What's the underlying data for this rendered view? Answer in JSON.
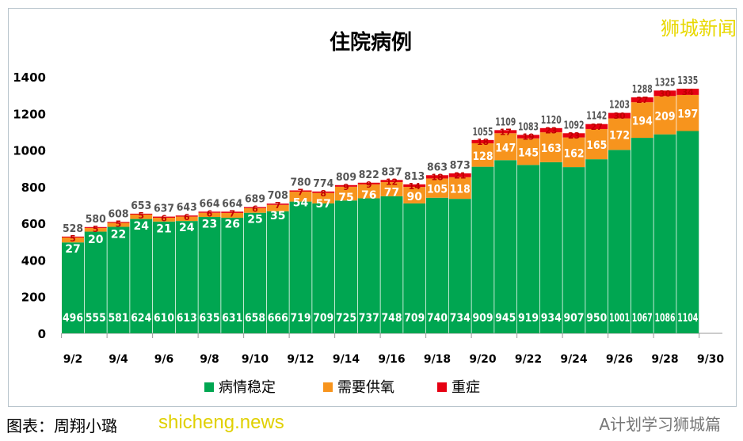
{
  "brand_watermark": "狮城新闻",
  "caption": "图表：周翔小璐",
  "site_watermark": "shicheng.news",
  "account_watermark": "A计划学习狮城篇",
  "colors": {
    "stable": "#00a651",
    "oxygen": "#f7941d",
    "icu": "#e60012"
  },
  "chart_data": {
    "type": "bar",
    "stacked": true,
    "title": "住院病例",
    "categories": [
      "9/2",
      "9/3",
      "9/4",
      "9/5",
      "9/6",
      "9/7",
      "9/8",
      "9/9",
      "9/10",
      "9/11",
      "9/12",
      "9/13",
      "9/14",
      "9/15",
      "9/16",
      "9/17",
      "9/18",
      "9/19",
      "9/20",
      "9/21",
      "9/22",
      "9/23",
      "9/24",
      "9/25",
      "9/26",
      "9/27",
      "9/28",
      "9/29"
    ],
    "x_tick_labels": [
      "9/2",
      "9/4",
      "9/6",
      "9/8",
      "9/10",
      "9/12",
      "9/14",
      "9/16",
      "9/18",
      "9/20",
      "9/22",
      "9/24",
      "9/26",
      "9/28",
      "9/30"
    ],
    "y_ticks": [
      0,
      200,
      400,
      600,
      800,
      1000,
      1200,
      1400
    ],
    "ylim": [
      0,
      1400
    ],
    "grid": false,
    "legend_position": "bottom",
    "series": [
      {
        "name": "病情稳定",
        "values": [
          496,
          555,
          581,
          624,
          610,
          613,
          635,
          631,
          658,
          666,
          719,
          709,
          725,
          737,
          748,
          709,
          740,
          734,
          909,
          945,
          919,
          934,
          907,
          950,
          1001,
          1067,
          1086,
          1104
        ]
      },
      {
        "name": "需要供氧",
        "values": [
          27,
          20,
          22,
          24,
          21,
          24,
          23,
          26,
          25,
          35,
          54,
          57,
          75,
          76,
          77,
          90,
          105,
          118,
          128,
          147,
          145,
          163,
          162,
          165,
          172,
          194,
          209,
          197
        ]
      },
      {
        "name": "重症",
        "values": [
          5,
          5,
          5,
          5,
          6,
          6,
          6,
          7,
          6,
          7,
          7,
          8,
          9,
          9,
          12,
          14,
          18,
          21,
          18,
          17,
          19,
          23,
          23,
          27,
          30,
          27,
          30,
          34
        ]
      }
    ],
    "totals": [
      528,
      580,
      608,
      653,
      637,
      643,
      664,
      664,
      689,
      708,
      780,
      774,
      809,
      822,
      837,
      813,
      863,
      873,
      1055,
      1109,
      1083,
      1120,
      1092,
      1142,
      1203,
      1288,
      1325,
      1335
    ]
  }
}
